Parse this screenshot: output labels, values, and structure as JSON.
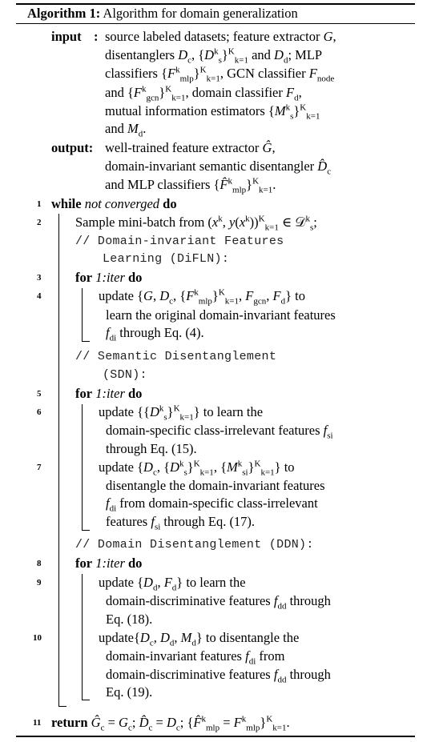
{
  "algorithm": {
    "label": "Algorithm 1:",
    "title": "Algorithm for domain generalization",
    "input_label": "input",
    "input_colon": ":",
    "input_lines": [
      "source labeled datasets; feature extractor G,",
      "disentanglers D_c, {D_s^k}_{k=1}^K and D_d; MLP",
      "classifiers {F_mlp^k}_{k=1}^K, GCN classifier F_node",
      "and {F_gcn^k}_{k=1}^K, domain classifier F_d,",
      "mutual information estimators {M_s^k}_{k=1}^K",
      "and M_d."
    ],
    "output_label": "output:",
    "output_lines": [
      "well-trained feature extractor Ĝ,",
      "domain-invariant semantic disentangler D̂_c",
      "and MLP classifiers {F̂_mlp^k}_{k=1}^K."
    ],
    "line_numbers": [
      "1",
      "2",
      "3",
      "4",
      "5",
      "6",
      "7",
      "8",
      "9",
      "10",
      "11"
    ],
    "kw_while": "while",
    "while_cond": "not converged",
    "kw_do": "do",
    "step2": "Sample mini-batch from (x^k, y(x^k))_{k=1}^K ∈ 𝒟_s^k;",
    "comment_difln_1": "// Domain-invariant Features",
    "comment_difln_2": "Learning (DiFLN):",
    "kw_for": "for",
    "for_range": "1:iter",
    "step4": [
      "update {G, D_c, {F_mlp^k}_{k=1}^K, F_gcn, F_d} to",
      "learn the original domain-invariant features",
      "f_di through Eq. (4)."
    ],
    "comment_sdn_1": "// Semantic Disentanglement",
    "comment_sdn_2": "(SDN):",
    "step6": [
      "update {{D_s^k}_{k=1}^K} to learn the",
      "domain-specific class-irrelevant features f_si",
      "through Eq. (15)."
    ],
    "step7": [
      "update {D_c, {D_s^k}_{k=1}^K, {M_si^k}_{k=1}^K} to",
      "disentangle the domain-invariant features",
      "f_di from domain-specific class-irrelevant",
      "features f_si through Eq. (17)."
    ],
    "comment_ddn": "// Domain Disentanglement (DDN):",
    "step9": [
      "update {D_d, F_d} to learn the",
      "domain-discriminative features f_dd through",
      "Eq. (18)."
    ],
    "step10": [
      "update{D_c, D_d, M_d} to disentangle the",
      "domain-invariant features f_di from",
      "domain-discriminative features f_dd through",
      "Eq. (19)."
    ],
    "kw_return": "return",
    "return_expr": "Ĝ_c = G_c; D̂_c = D_c; {F̂_mlp^k = F_mlp^k}_{k=1}^K."
  }
}
